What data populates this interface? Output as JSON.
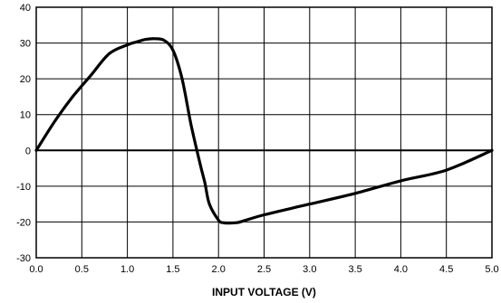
{
  "chart_data": {
    "type": "line",
    "title": "",
    "xlabel": "INPUT VOLTAGE (V)",
    "ylabel": "",
    "xlim": [
      0,
      5
    ],
    "ylim": [
      -30,
      40
    ],
    "x_ticks": [
      "0.0",
      "0.5",
      "1.0",
      "1.5",
      "2.0",
      "2.5",
      "3.0",
      "3.5",
      "4.0",
      "4.5",
      "5.0"
    ],
    "y_ticks": [
      "40",
      "30",
      "20",
      "10",
      "0",
      "-10",
      "-20",
      "-30"
    ],
    "grid": true,
    "line_color": "#000000",
    "series": [
      {
        "x": [
          0.0,
          0.2,
          0.4,
          0.6,
          0.8,
          1.0,
          1.1,
          1.2,
          1.3,
          1.4,
          1.5,
          1.6,
          1.7,
          1.8,
          1.85,
          1.9,
          2.0,
          2.05,
          2.1,
          2.2,
          2.3,
          2.5,
          3.0,
          3.5,
          4.0,
          4.5,
          5.0
        ],
        "y": [
          0,
          8,
          15,
          21,
          27,
          29.5,
          30.3,
          31,
          31.2,
          30.8,
          28,
          20,
          7,
          -4,
          -9,
          -15,
          -19.5,
          -20.2,
          -20.3,
          -20.2,
          -19.5,
          -18,
          -15,
          -12,
          -8.5,
          -5.5,
          0
        ]
      }
    ]
  }
}
